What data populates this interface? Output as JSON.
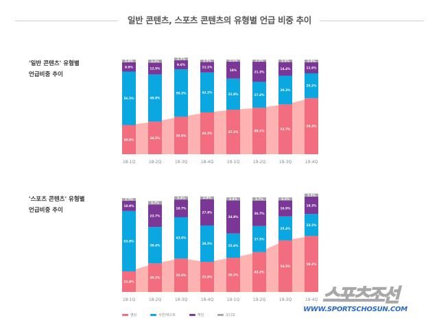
{
  "page": {
    "title": "일반 콘텐츠, 스포츠 콘텐츠의 유형별 언급 비중 추이",
    "watermark_logo": "스포츠조선",
    "watermark_url": "WWW.SPORTSCHOSUN.COM"
  },
  "legend": [
    {
      "label": "영상",
      "color": "#f26d7d"
    },
    {
      "label": "사진/텍스트",
      "color": "#0aa7e0"
    },
    {
      "label": "게임",
      "color": "#7b3796"
    },
    {
      "label": "오디오",
      "color": "#a6a6a6"
    }
  ],
  "colors": {
    "video": "#f26d7d",
    "photo_text": "#0aa7e0",
    "game": "#7b3796",
    "audio": "#a6a6a6",
    "video_area": "#ffb3b0"
  },
  "chart_data": [
    {
      "type": "bar",
      "stacked": true,
      "title": "'일반 콘텐츠' 유형별\n언급비중 추이",
      "categories": [
        "18-1Q",
        "18-2Q",
        "18-3Q",
        "18-4Q",
        "19-1Q",
        "19-2Q",
        "19-3Q",
        "19-4Q"
      ],
      "series": [
        {
          "name": "영상",
          "values": [
            30.8,
            34.5,
            39.6,
            44.2,
            47.1,
            49.1,
            52.7,
            59.3
          ],
          "labels": [
            "30.8%",
            "34.5%",
            "39.6%",
            "44.2%",
            "47.1%",
            "49.1%",
            "52.7%",
            "59.3%"
          ]
        },
        {
          "name": "사진/텍스트",
          "values": [
            56.5,
            49.8,
            50.2,
            42.2,
            32.8,
            27.4,
            30.3,
            26.2
          ],
          "labels": [
            "56.5%",
            "49.8%",
            "50.2%",
            "42.2%",
            "32.8%",
            "27.4%",
            "30.3%",
            "26.2%"
          ]
        },
        {
          "name": "게임",
          "values": [
            9.9,
            12.5,
            9.6,
            11.1,
            18,
            21.3,
            14.4,
            11.6
          ],
          "labels": [
            "9.9%",
            "12.5%",
            "9.6%",
            "11.1%",
            "18%",
            "21.3%",
            "14.4%",
            "11.6%"
          ]
        },
        {
          "name": "오디오",
          "values": [
            2.8,
            3.2,
            2.7,
            2.5,
            2.1,
            2.2,
            2.6,
            2.9
          ],
          "labels": [
            "2.8%",
            "3.2%",
            "2.7%",
            "2.5%",
            "2.1%",
            "2.2%",
            "2.6%",
            "2.9%"
          ]
        }
      ],
      "ylim": [
        0,
        100
      ]
    },
    {
      "type": "bar",
      "stacked": true,
      "title": "'스포츠 콘텐츠' 유형별\n언급비중 추이",
      "categories": [
        "18-1Q",
        "18-2Q",
        "18-3Q",
        "18-4Q",
        "19-1Q",
        "19-2Q",
        "19-3Q",
        "19-4Q"
      ],
      "series": [
        {
          "name": "영상",
          "values": [
            21.8,
            30.3,
            35.4,
            31.8,
            36.2,
            42.2,
            54.5,
            59.2
          ],
          "labels": [
            "21.8%",
            "30.3%",
            "35.4%",
            "31.8%",
            "36.2%",
            "42.2%",
            "54.5%",
            "59.2%"
          ]
        },
        {
          "name": "사진/텍스트",
          "values": [
            63.8,
            38.4,
            43.6,
            38.5,
            25.6,
            27.5,
            25.4,
            23.2
          ],
          "labels": [
            "63.8%",
            "38.4%",
            "43.6%",
            "38.5%",
            "25.6%",
            "27.5%",
            "25.4%",
            "23.2%"
          ]
        },
        {
          "name": "게임",
          "values": [
            10.9,
            23.7,
            18.7,
            27.8,
            34.9,
            26.7,
            16.9,
            18.3
          ],
          "labels": [
            "10.9%",
            "23.7%",
            "18.7%",
            "27.8%",
            "34.9%",
            "26.7%",
            "16.9%",
            "18.3%"
          ]
        },
        {
          "name": "오디오",
          "values": [
            2.7,
            3.7,
            3.4,
            2.9,
            3.4,
            3.7,
            3.2,
            3.3
          ],
          "labels": [
            "2.7%",
            "3.7%",
            "3.4%",
            "2.9%",
            "3.4%",
            "3.7%",
            "3.2%",
            "3.3%"
          ]
        }
      ],
      "ylim": [
        0,
        100
      ]
    }
  ]
}
